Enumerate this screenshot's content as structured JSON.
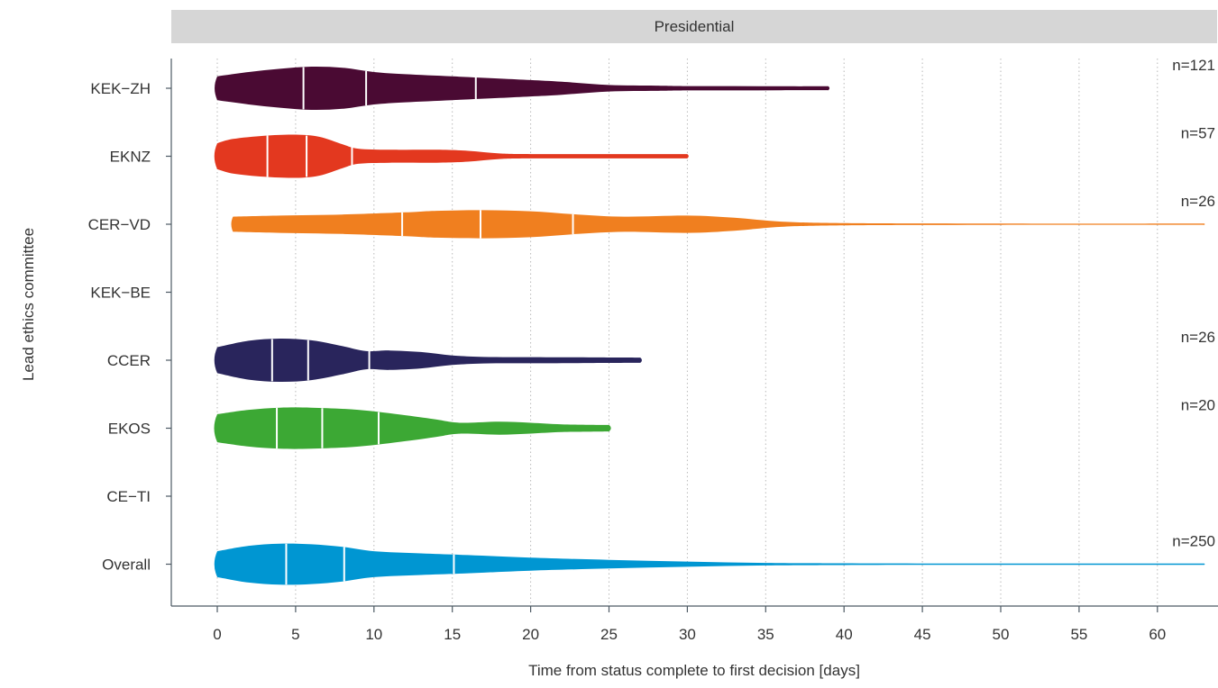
{
  "chart_data": {
    "type": "violin",
    "panel_title": "Presidential",
    "xlabel": "Time from status complete to first decision [days]",
    "ylabel": "Lead ethics committee",
    "xlim": [
      -3,
      63
    ],
    "x_ticks": [
      0,
      5,
      10,
      15,
      20,
      25,
      30,
      35,
      40,
      45,
      50,
      55,
      60
    ],
    "grid": "vertical dotted",
    "categories": [
      "KEK−ZH",
      "EKNZ",
      "CER−VD",
      "KEK−BE",
      "CCER",
      "EKOS",
      "CE−TI",
      "Overall"
    ],
    "series": [
      {
        "category": "KEK−ZH",
        "color": "#4A0A33",
        "n_label": "n=121",
        "min": 0,
        "max": 39,
        "quartiles": [
          5.5,
          9.5,
          16.5
        ],
        "density": [
          [
            0,
            0.55
          ],
          [
            2,
            0.75
          ],
          [
            4,
            0.9
          ],
          [
            6,
            1.0
          ],
          [
            8,
            0.95
          ],
          [
            10,
            0.75
          ],
          [
            12,
            0.65
          ],
          [
            15,
            0.55
          ],
          [
            18,
            0.45
          ],
          [
            20,
            0.38
          ],
          [
            22,
            0.3
          ],
          [
            25,
            0.15
          ],
          [
            28,
            0.12
          ],
          [
            30,
            0.1
          ],
          [
            33,
            0.1
          ],
          [
            36,
            0.09
          ],
          [
            39,
            0.09
          ]
        ]
      },
      {
        "category": "EKNZ",
        "color": "#E3381F",
        "n_label": "n=57",
        "min": 0,
        "max": 30,
        "quartiles": [
          3.2,
          5.7,
          8.6
        ],
        "density": [
          [
            0,
            0.6
          ],
          [
            1,
            0.8
          ],
          [
            3,
            0.95
          ],
          [
            5,
            1.0
          ],
          [
            6.5,
            0.9
          ],
          [
            8,
            0.55
          ],
          [
            9,
            0.35
          ],
          [
            11,
            0.3
          ],
          [
            14,
            0.3
          ],
          [
            16,
            0.25
          ],
          [
            18,
            0.13
          ],
          [
            20,
            0.1
          ],
          [
            25,
            0.1
          ],
          [
            30,
            0.1
          ]
        ]
      },
      {
        "category": "CER−VD",
        "color": "#F07F1F",
        "n_label": "n=26",
        "min": 1,
        "max": 63,
        "quartiles": [
          11.8,
          16.8,
          22.7
        ],
        "density": [
          [
            1,
            0.35
          ],
          [
            4,
            0.4
          ],
          [
            8,
            0.45
          ],
          [
            12,
            0.55
          ],
          [
            14,
            0.62
          ],
          [
            17,
            0.65
          ],
          [
            20,
            0.6
          ],
          [
            23,
            0.45
          ],
          [
            26,
            0.35
          ],
          [
            30,
            0.4
          ],
          [
            33,
            0.3
          ],
          [
            36,
            0.12
          ],
          [
            40,
            0.05
          ],
          [
            50,
            0.03
          ],
          [
            63,
            0.03
          ]
        ]
      },
      {
        "category": "CCER",
        "color": "#29255C",
        "n_label": "n=26",
        "min": 0,
        "max": 27,
        "quartiles": [
          3.5,
          5.8,
          9.7
        ],
        "density": [
          [
            0,
            0.6
          ],
          [
            2,
            0.9
          ],
          [
            4,
            1.0
          ],
          [
            6,
            0.92
          ],
          [
            8,
            0.65
          ],
          [
            9.5,
            0.42
          ],
          [
            11,
            0.45
          ],
          [
            13,
            0.38
          ],
          [
            15,
            0.22
          ],
          [
            17,
            0.15
          ],
          [
            20,
            0.14
          ],
          [
            24,
            0.13
          ],
          [
            27,
            0.12
          ]
        ]
      },
      {
        "category": "EKOS",
        "color": "#3CA834",
        "n_label": "n=20",
        "min": 0,
        "max": 25,
        "quartiles": [
          3.8,
          6.7,
          10.3
        ],
        "density": [
          [
            0,
            0.65
          ],
          [
            2,
            0.85
          ],
          [
            4,
            0.95
          ],
          [
            6,
            0.95
          ],
          [
            9,
            0.85
          ],
          [
            12,
            0.6
          ],
          [
            14,
            0.4
          ],
          [
            15,
            0.28
          ],
          [
            16,
            0.25
          ],
          [
            18,
            0.3
          ],
          [
            20,
            0.25
          ],
          [
            22,
            0.18
          ],
          [
            25,
            0.15
          ]
        ]
      },
      {
        "category": "Overall",
        "color": "#0096D2",
        "n_label": "n=250",
        "min": 0,
        "max": 63,
        "quartiles": [
          4.4,
          8.1,
          15.1
        ],
        "density": [
          [
            0,
            0.6
          ],
          [
            2,
            0.85
          ],
          [
            4,
            0.95
          ],
          [
            6,
            0.92
          ],
          [
            8,
            0.8
          ],
          [
            10,
            0.6
          ],
          [
            13,
            0.5
          ],
          [
            16,
            0.42
          ],
          [
            20,
            0.3
          ],
          [
            25,
            0.2
          ],
          [
            30,
            0.12
          ],
          [
            35,
            0.06
          ],
          [
            40,
            0.04
          ],
          [
            50,
            0.03
          ],
          [
            63,
            0.03
          ]
        ]
      }
    ]
  }
}
